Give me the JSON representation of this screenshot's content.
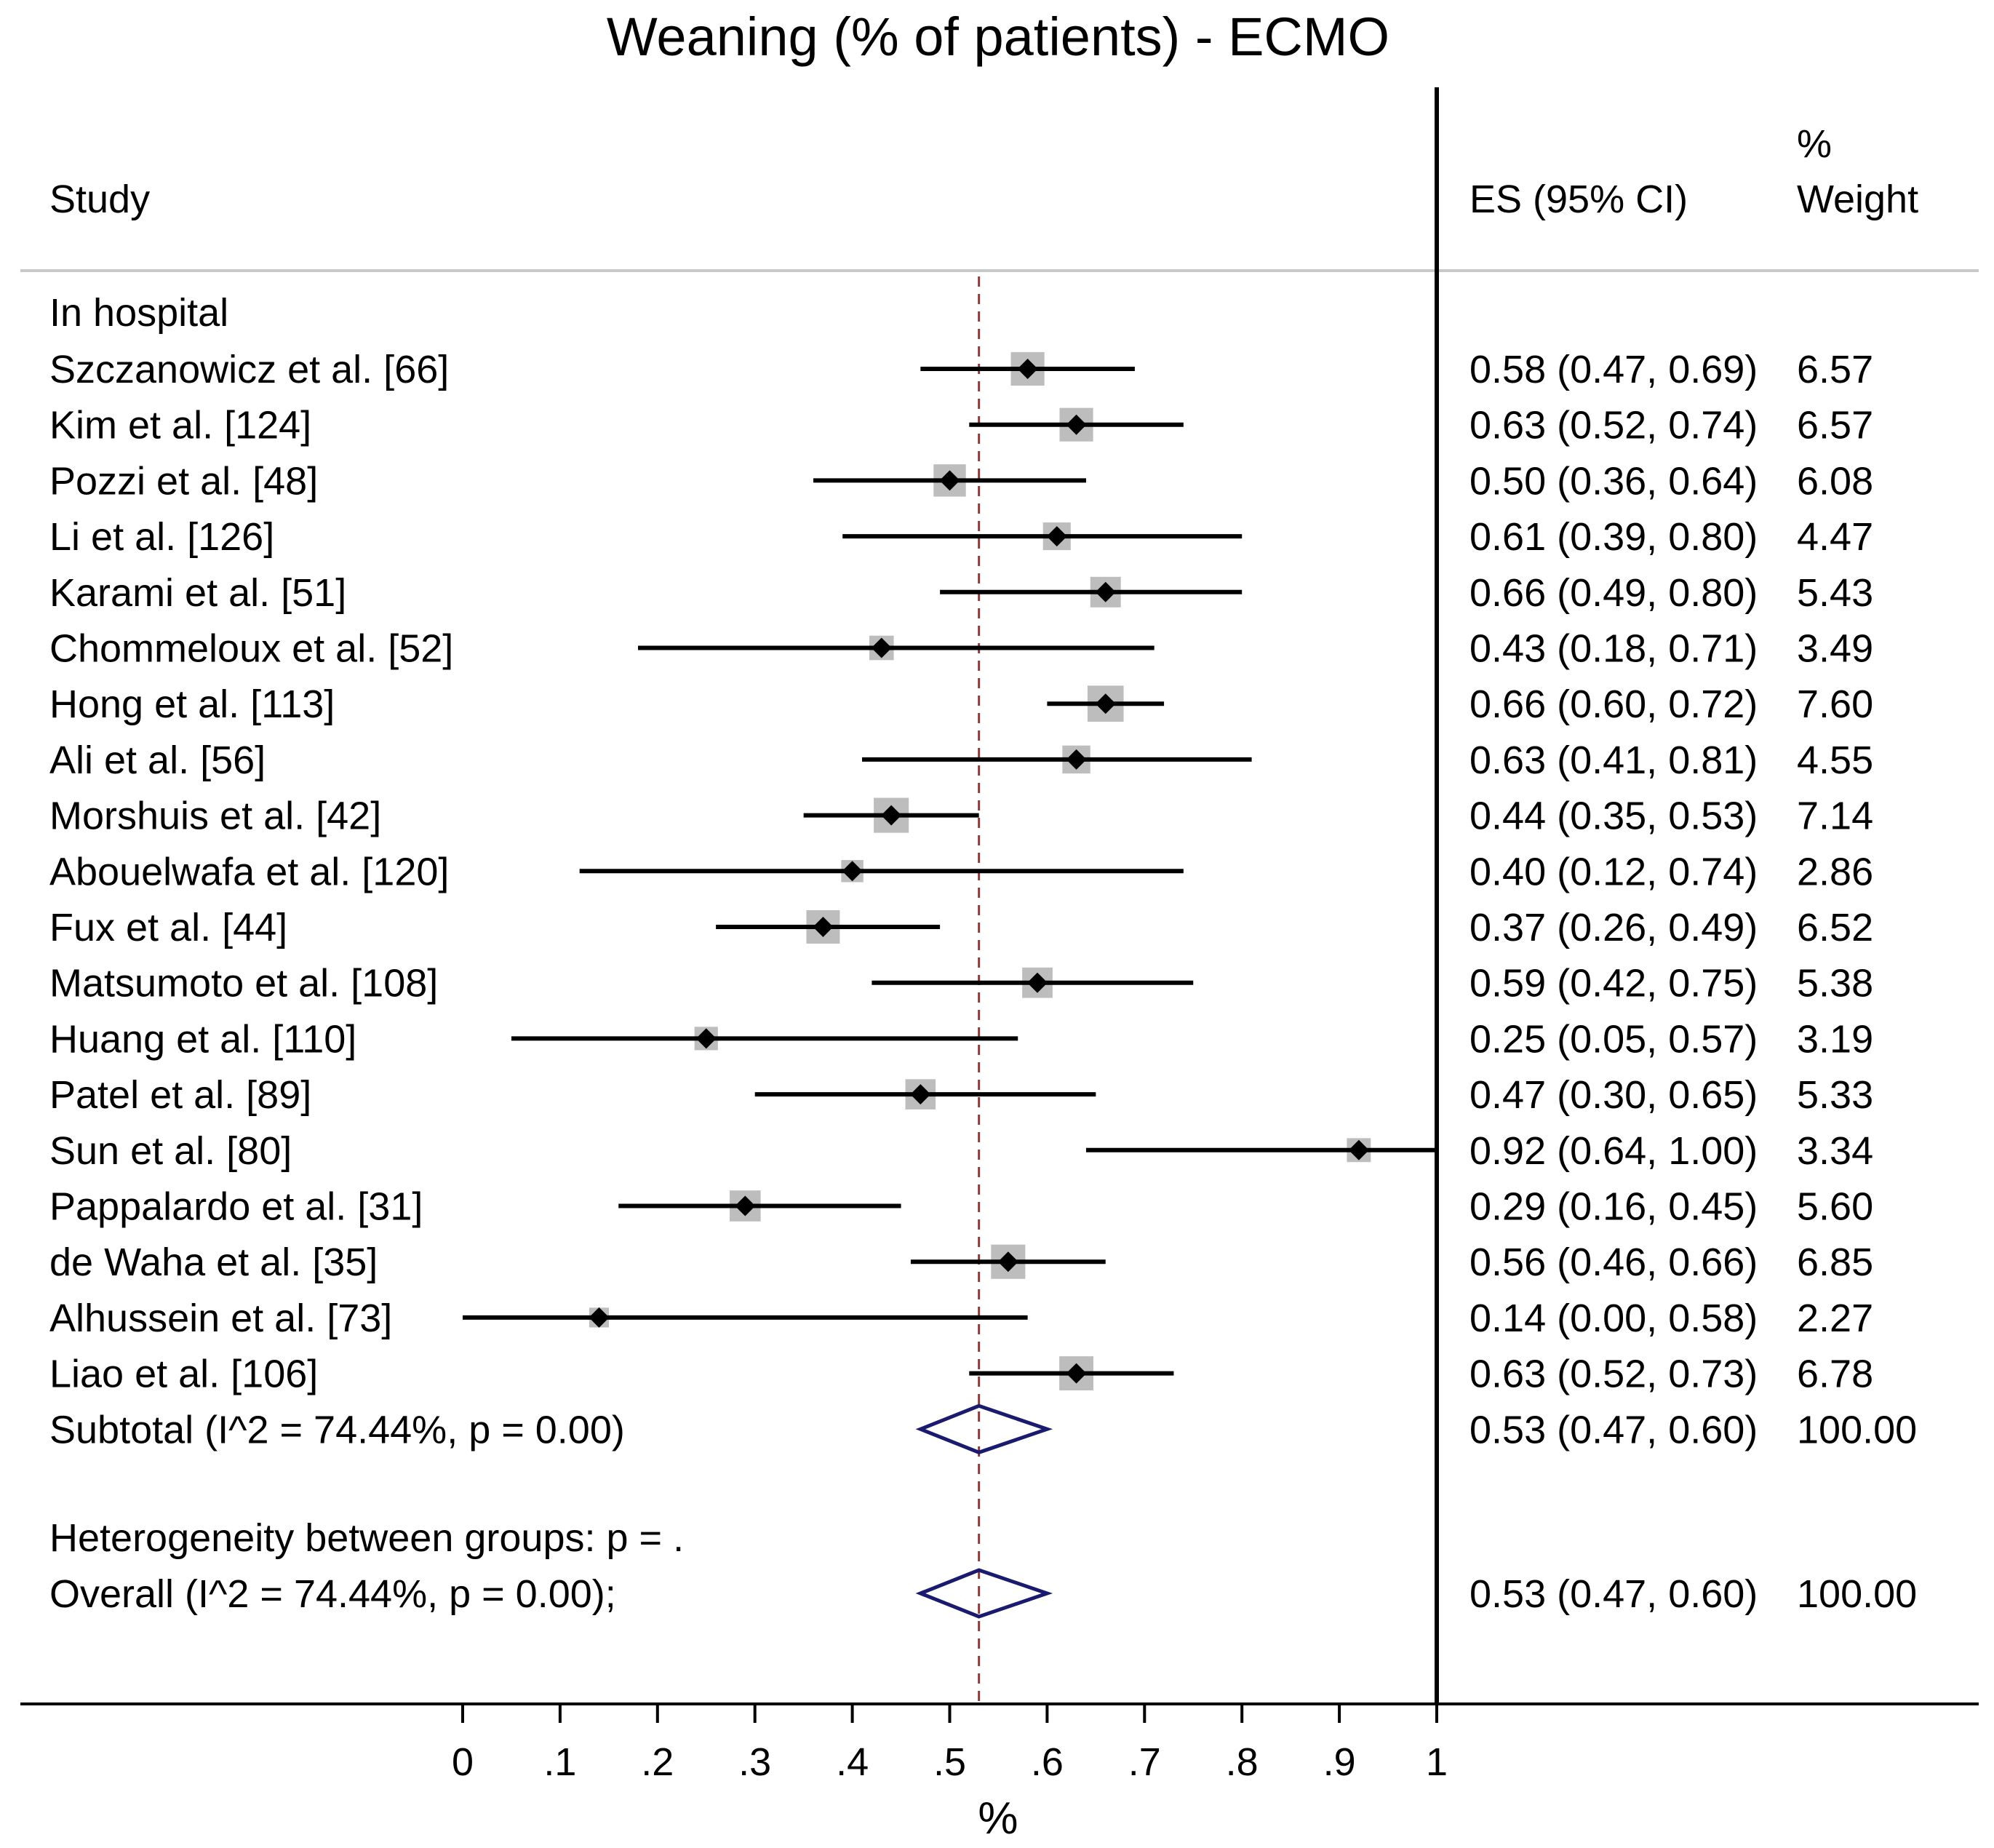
{
  "colors": {
    "text": "#000000",
    "ci_line": "#000000",
    "weight_box": "#bdbdbd",
    "point": "#000000",
    "pooled_diamond": "#1a1a6e",
    "reference_line": "#8b3a3a",
    "separator": "#c8c8c8"
  },
  "chart_data": {
    "type": "forest",
    "title": "Weaning (% of patients) - ECMO",
    "xlabel": "%",
    "xlim": [
      0,
      1
    ],
    "x_ticks": [
      0,
      0.1,
      0.2,
      0.3,
      0.4,
      0.5,
      0.6,
      0.7,
      0.8,
      0.9,
      1
    ],
    "x_tick_labels": [
      "0",
      ".1",
      ".2",
      ".3",
      ".4",
      ".5",
      ".6",
      ".7",
      ".8",
      ".9",
      "1"
    ],
    "reference_value": 0.53,
    "columns": {
      "study": "Study",
      "es": "ES (95% CI)",
      "weight_top": "%",
      "weight_bottom": "Weight"
    },
    "group_label": "In hospital",
    "studies": [
      {
        "name": "Szczanowicz et al. [66]",
        "es": 0.58,
        "lo": 0.47,
        "hi": 0.69,
        "weight": 6.57,
        "es_text": "0.58 (0.47, 0.69)",
        "weight_text": "6.57"
      },
      {
        "name": "Kim et al. [124]",
        "es": 0.63,
        "lo": 0.52,
        "hi": 0.74,
        "weight": 6.57,
        "es_text": "0.63 (0.52, 0.74)",
        "weight_text": "6.57"
      },
      {
        "name": "Pozzi et al. [48]",
        "es": 0.5,
        "lo": 0.36,
        "hi": 0.64,
        "weight": 6.08,
        "es_text": "0.50 (0.36, 0.64)",
        "weight_text": "6.08"
      },
      {
        "name": "Li et al. [126]",
        "es": 0.61,
        "lo": 0.39,
        "hi": 0.8,
        "weight": 4.47,
        "es_text": "0.61 (0.39, 0.80)",
        "weight_text": "4.47"
      },
      {
        "name": "Karami et al. [51]",
        "es": 0.66,
        "lo": 0.49,
        "hi": 0.8,
        "weight": 5.43,
        "es_text": "0.66 (0.49, 0.80)",
        "weight_text": "5.43"
      },
      {
        "name": "Chommeloux et al. [52]",
        "es": 0.43,
        "lo": 0.18,
        "hi": 0.71,
        "weight": 3.49,
        "es_text": "0.43 (0.18, 0.71)",
        "weight_text": "3.49"
      },
      {
        "name": "Hong et al. [113]",
        "es": 0.66,
        "lo": 0.6,
        "hi": 0.72,
        "weight": 7.6,
        "es_text": "0.66 (0.60, 0.72)",
        "weight_text": "7.60"
      },
      {
        "name": "Ali et al. [56]",
        "es": 0.63,
        "lo": 0.41,
        "hi": 0.81,
        "weight": 4.55,
        "es_text": "0.63 (0.41, 0.81)",
        "weight_text": "4.55"
      },
      {
        "name": "Morshuis et al. [42]",
        "es": 0.44,
        "lo": 0.35,
        "hi": 0.53,
        "weight": 7.14,
        "es_text": "0.44 (0.35, 0.53)",
        "weight_text": "7.14"
      },
      {
        "name": "Abouelwafa et al. [120]",
        "es": 0.4,
        "lo": 0.12,
        "hi": 0.74,
        "weight": 2.86,
        "es_text": "0.40 (0.12, 0.74)",
        "weight_text": "2.86"
      },
      {
        "name": "Fux et al. [44]",
        "es": 0.37,
        "lo": 0.26,
        "hi": 0.49,
        "weight": 6.52,
        "es_text": "0.37 (0.26, 0.49)",
        "weight_text": "6.52"
      },
      {
        "name": "Matsumoto et al. [108]",
        "es": 0.59,
        "lo": 0.42,
        "hi": 0.75,
        "weight": 5.38,
        "es_text": "0.59 (0.42, 0.75)",
        "weight_text": "5.38"
      },
      {
        "name": "Huang et al. [110]",
        "es": 0.25,
        "lo": 0.05,
        "hi": 0.57,
        "weight": 3.19,
        "es_text": "0.25 (0.05, 0.57)",
        "weight_text": "3.19"
      },
      {
        "name": "Patel et al. [89]",
        "es": 0.47,
        "lo": 0.3,
        "hi": 0.65,
        "weight": 5.33,
        "es_text": "0.47 (0.30, 0.65)",
        "weight_text": "5.33"
      },
      {
        "name": "Sun et al. [80]",
        "es": 0.92,
        "lo": 0.64,
        "hi": 1.0,
        "weight": 3.34,
        "es_text": "0.92 (0.64, 1.00)",
        "weight_text": "3.34"
      },
      {
        "name": "Pappalardo et al. [31]",
        "es": 0.29,
        "lo": 0.16,
        "hi": 0.45,
        "weight": 5.6,
        "es_text": "0.29 (0.16, 0.45)",
        "weight_text": "5.60"
      },
      {
        "name": "de Waha et al. [35]",
        "es": 0.56,
        "lo": 0.46,
        "hi": 0.66,
        "weight": 6.85,
        "es_text": "0.56 (0.46, 0.66)",
        "weight_text": "6.85"
      },
      {
        "name": "Alhussein et al. [73]",
        "es": 0.14,
        "lo": 0.0,
        "hi": 0.58,
        "weight": 2.27,
        "es_text": "0.14 (0.00, 0.58)",
        "weight_text": "2.27"
      },
      {
        "name": "Liao et al. [106]",
        "es": 0.63,
        "lo": 0.52,
        "hi": 0.73,
        "weight": 6.78,
        "es_text": "0.63 (0.52, 0.73)",
        "weight_text": "6.78"
      }
    ],
    "subtotal": {
      "label": "Subtotal  (I^2 = 74.44%, p = 0.00)",
      "es": 0.53,
      "lo": 0.47,
      "hi": 0.6,
      "es_text": "0.53 (0.47, 0.60)",
      "weight_text": "100.00"
    },
    "heterogeneity_text": "Heterogeneity between groups: p = .",
    "overall": {
      "label": "Overall  (I^2 = 74.44%, p = 0.00);",
      "es": 0.53,
      "lo": 0.47,
      "hi": 0.6,
      "es_text": "0.53 (0.47, 0.60)",
      "weight_text": "100.00"
    }
  }
}
